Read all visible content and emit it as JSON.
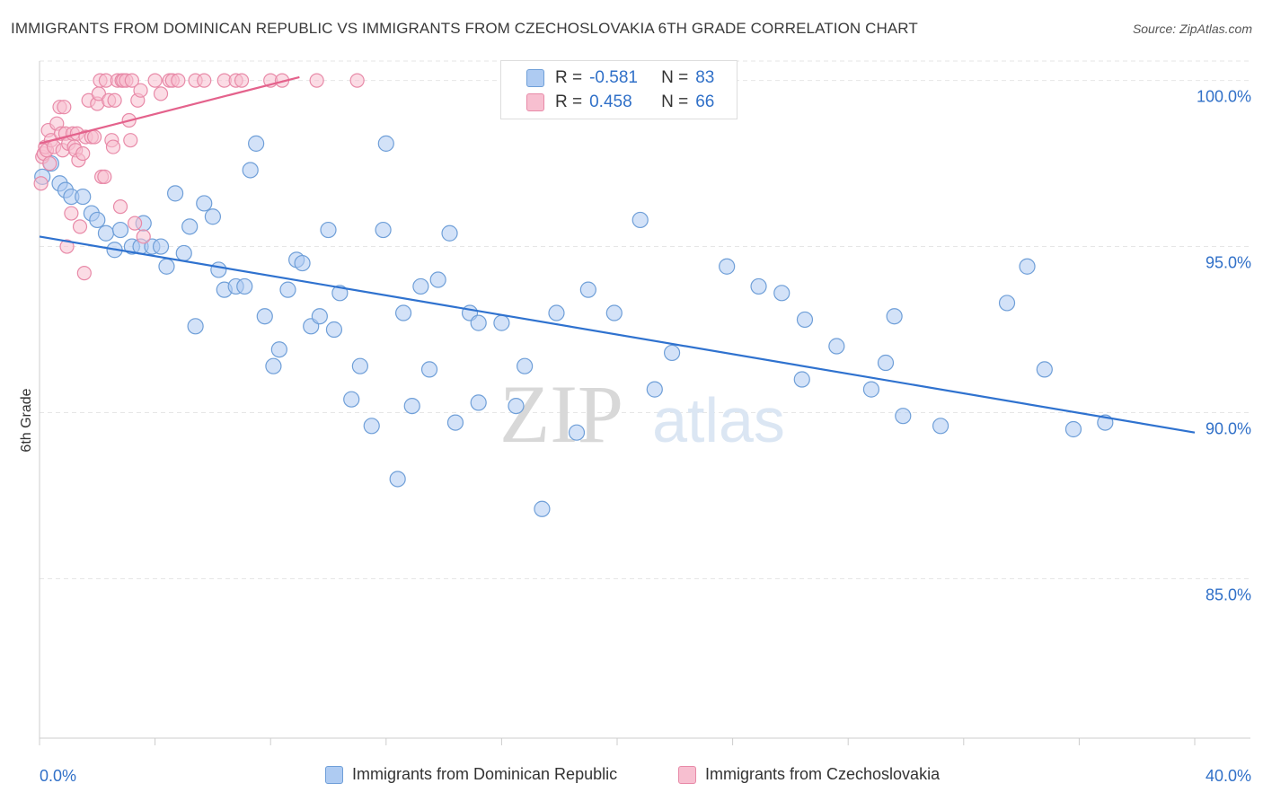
{
  "title": "IMMIGRANTS FROM DOMINICAN REPUBLIC VS IMMIGRANTS FROM CZECHOSLOVAKIA 6TH GRADE CORRELATION CHART",
  "source": "Source: ZipAtlas.com",
  "watermark": {
    "zip": "ZIP",
    "atlas": "atlas"
  },
  "stats": {
    "r_label": "R =",
    "n_label": "N =",
    "rows": [
      {
        "r": "-0.581",
        "n": "83"
      },
      {
        "r": "0.458",
        "n": "66"
      }
    ]
  },
  "legend": [
    {
      "label": "Immigrants from Dominican Republic"
    },
    {
      "label": "Immigrants from Czechoslovakia"
    }
  ],
  "colors": {
    "blue_fill": "#aecbf2",
    "blue_stroke": "#6f9fd8",
    "blue_line": "#2f72cf",
    "pink_fill": "#f7bfd0",
    "pink_stroke": "#e88aa8",
    "pink_line": "#e4628c",
    "axis_text": "#3070c8",
    "grid": "#e6e6e6"
  },
  "chart_data": {
    "type": "scatter",
    "title": "IMMIGRANTS FROM DOMINICAN REPUBLIC VS IMMIGRANTS FROM CZECHOSLOVAKIA 6TH GRADE CORRELATION CHART",
    "xlabel": "",
    "ylabel": "6th Grade",
    "xlim": [
      0,
      40
    ],
    "ylim": [
      80.2,
      100.8
    ],
    "x_tick_labels": [
      "0.0%",
      "40.0%"
    ],
    "y_ticks": [
      {
        "value": 100,
        "label": "100.0%"
      },
      {
        "value": 95,
        "label": "95.0%"
      },
      {
        "value": 90,
        "label": "90.0%"
      },
      {
        "value": 85,
        "label": "85.0%"
      }
    ],
    "series": [
      {
        "name": "Immigrants from Dominican Republic",
        "trend": {
          "x": [
            0,
            40
          ],
          "y": [
            95.3,
            89.4
          ]
        },
        "points": [
          [
            0.1,
            97.1
          ],
          [
            0.4,
            97.5
          ],
          [
            0.7,
            96.9
          ],
          [
            0.9,
            96.7
          ],
          [
            1.1,
            96.5
          ],
          [
            1.5,
            96.5
          ],
          [
            1.8,
            96.0
          ],
          [
            2.0,
            95.8
          ],
          [
            2.3,
            95.4
          ],
          [
            2.6,
            94.9
          ],
          [
            2.8,
            95.5
          ],
          [
            3.2,
            95.0
          ],
          [
            3.5,
            95.0
          ],
          [
            3.6,
            95.7
          ],
          [
            3.9,
            95.0
          ],
          [
            4.2,
            95.0
          ],
          [
            4.4,
            94.4
          ],
          [
            4.7,
            96.6
          ],
          [
            5.0,
            94.8
          ],
          [
            5.2,
            95.6
          ],
          [
            5.4,
            92.6
          ],
          [
            5.7,
            96.3
          ],
          [
            6.0,
            95.9
          ],
          [
            6.2,
            94.3
          ],
          [
            6.4,
            93.7
          ],
          [
            6.8,
            93.8
          ],
          [
            7.1,
            93.8
          ],
          [
            7.3,
            97.3
          ],
          [
            7.5,
            98.1
          ],
          [
            7.8,
            92.9
          ],
          [
            8.1,
            91.4
          ],
          [
            8.3,
            91.9
          ],
          [
            8.6,
            93.7
          ],
          [
            8.9,
            94.6
          ],
          [
            9.1,
            94.5
          ],
          [
            9.4,
            92.6
          ],
          [
            9.7,
            92.9
          ],
          [
            10.0,
            95.5
          ],
          [
            10.2,
            92.5
          ],
          [
            10.4,
            93.6
          ],
          [
            10.8,
            90.4
          ],
          [
            11.1,
            91.4
          ],
          [
            11.5,
            89.6
          ],
          [
            11.9,
            95.5
          ],
          [
            12.0,
            98.1
          ],
          [
            12.4,
            88.0
          ],
          [
            12.6,
            93.0
          ],
          [
            12.9,
            90.2
          ],
          [
            13.2,
            93.8
          ],
          [
            13.5,
            91.3
          ],
          [
            13.8,
            94.0
          ],
          [
            14.2,
            95.4
          ],
          [
            14.4,
            89.7
          ],
          [
            14.9,
            93.0
          ],
          [
            15.2,
            92.7
          ],
          [
            15.2,
            90.3
          ],
          [
            16.0,
            92.7
          ],
          [
            16.5,
            90.2
          ],
          [
            16.8,
            91.4
          ],
          [
            17.4,
            87.1
          ],
          [
            17.9,
            93.0
          ],
          [
            18.6,
            89.4
          ],
          [
            19.0,
            93.7
          ],
          [
            19.9,
            93.0
          ],
          [
            20.8,
            95.8
          ],
          [
            21.3,
            90.7
          ],
          [
            21.9,
            91.8
          ],
          [
            23.8,
            94.4
          ],
          [
            24.9,
            93.8
          ],
          [
            25.7,
            93.6
          ],
          [
            26.4,
            91.0
          ],
          [
            26.5,
            92.8
          ],
          [
            27.6,
            92.0
          ],
          [
            28.8,
            90.7
          ],
          [
            29.3,
            91.5
          ],
          [
            29.6,
            92.9
          ],
          [
            29.9,
            89.9
          ],
          [
            31.2,
            89.6
          ],
          [
            33.5,
            93.3
          ],
          [
            34.2,
            94.4
          ],
          [
            34.8,
            91.3
          ],
          [
            35.8,
            89.5
          ],
          [
            36.9,
            89.7
          ]
        ]
      },
      {
        "name": "Immigrants from Czechoslovakia",
        "trend": {
          "x": [
            0,
            9
          ],
          "y": [
            98.1,
            100.1
          ]
        },
        "points": [
          [
            0.05,
            96.9
          ],
          [
            0.1,
            97.7
          ],
          [
            0.15,
            97.8
          ],
          [
            0.2,
            98.0
          ],
          [
            0.25,
            97.9
          ],
          [
            0.3,
            98.5
          ],
          [
            0.35,
            97.5
          ],
          [
            0.4,
            98.2
          ],
          [
            0.5,
            98.0
          ],
          [
            0.6,
            98.7
          ],
          [
            0.7,
            99.2
          ],
          [
            0.75,
            98.4
          ],
          [
            0.8,
            97.9
          ],
          [
            0.85,
            99.2
          ],
          [
            0.9,
            98.4
          ],
          [
            0.95,
            95.0
          ],
          [
            1.0,
            98.1
          ],
          [
            1.1,
            96.0
          ],
          [
            1.15,
            98.4
          ],
          [
            1.2,
            98.0
          ],
          [
            1.25,
            97.9
          ],
          [
            1.3,
            98.4
          ],
          [
            1.35,
            97.6
          ],
          [
            1.4,
            95.6
          ],
          [
            1.5,
            97.8
          ],
          [
            1.55,
            94.2
          ],
          [
            1.6,
            98.3
          ],
          [
            1.7,
            99.4
          ],
          [
            1.8,
            98.3
          ],
          [
            1.9,
            98.3
          ],
          [
            2.0,
            99.3
          ],
          [
            2.05,
            99.6
          ],
          [
            2.1,
            100.0
          ],
          [
            2.15,
            97.1
          ],
          [
            2.25,
            97.1
          ],
          [
            2.3,
            100.0
          ],
          [
            2.4,
            99.4
          ],
          [
            2.5,
            98.2
          ],
          [
            2.55,
            98.0
          ],
          [
            2.6,
            99.4
          ],
          [
            2.7,
            100.0
          ],
          [
            2.8,
            96.2
          ],
          [
            2.85,
            100.0
          ],
          [
            2.9,
            100.0
          ],
          [
            3.0,
            100.0
          ],
          [
            3.1,
            98.8
          ],
          [
            3.15,
            98.2
          ],
          [
            3.2,
            100.0
          ],
          [
            3.3,
            95.7
          ],
          [
            3.4,
            99.4
          ],
          [
            3.5,
            99.7
          ],
          [
            3.6,
            95.3
          ],
          [
            4.0,
            100.0
          ],
          [
            4.2,
            99.6
          ],
          [
            4.5,
            100.0
          ],
          [
            4.6,
            100.0
          ],
          [
            4.8,
            100.0
          ],
          [
            5.4,
            100.0
          ],
          [
            5.7,
            100.0
          ],
          [
            6.4,
            100.0
          ],
          [
            6.8,
            100.0
          ],
          [
            7.0,
            100.0
          ],
          [
            8.0,
            100.0
          ],
          [
            8.4,
            100.0
          ],
          [
            9.6,
            100.0
          ],
          [
            11.0,
            100.0
          ]
        ]
      }
    ]
  }
}
